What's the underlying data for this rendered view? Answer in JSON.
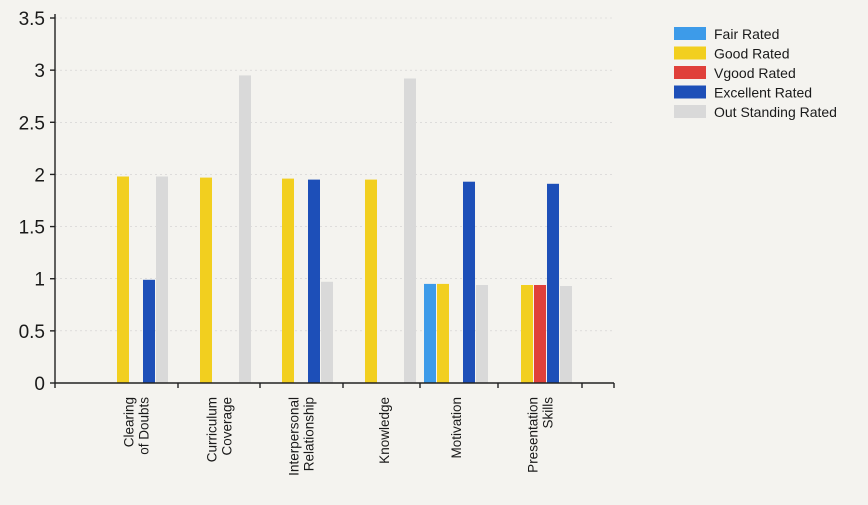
{
  "chart_data": {
    "type": "bar",
    "title": "",
    "xlabel": "",
    "ylabel": "",
    "ylim": [
      0,
      3.5
    ],
    "yticks": [
      "0",
      "0.5",
      "1",
      "1.5",
      "2",
      "2.5",
      "3",
      "3.5"
    ],
    "grid": false,
    "legend_position": "top-right",
    "categories": [
      [
        "Clearing",
        "of Doubts"
      ],
      [
        "Curriculum",
        "Coverage"
      ],
      [
        "Interpersonal",
        "Relationship"
      ],
      [
        "Knowledge"
      ],
      [
        "Motivation"
      ],
      [
        "Presentation",
        "Skills"
      ]
    ],
    "series": [
      {
        "name": "Fair Rated",
        "color": "#3d9be9",
        "values": [
          0,
          0,
          0,
          0,
          0.95,
          0
        ]
      },
      {
        "name": "Good Rated",
        "color": "#f2cf1f",
        "values": [
          1.98,
          1.97,
          1.96,
          1.95,
          0.95,
          0.94
        ]
      },
      {
        "name": "Vgood Rated",
        "color": "#e0403a",
        "values": [
          0,
          0,
          0,
          0,
          0,
          0.94
        ]
      },
      {
        "name": "Excellent Rated",
        "color": "#1d4fb8",
        "values": [
          0.99,
          0,
          1.95,
          0,
          1.93,
          1.91
        ]
      },
      {
        "name": "Out Standing Rated",
        "color": "#d9d9d9",
        "values": [
          1.98,
          2.95,
          0.97,
          2.92,
          0.94,
          0.93
        ]
      }
    ]
  }
}
